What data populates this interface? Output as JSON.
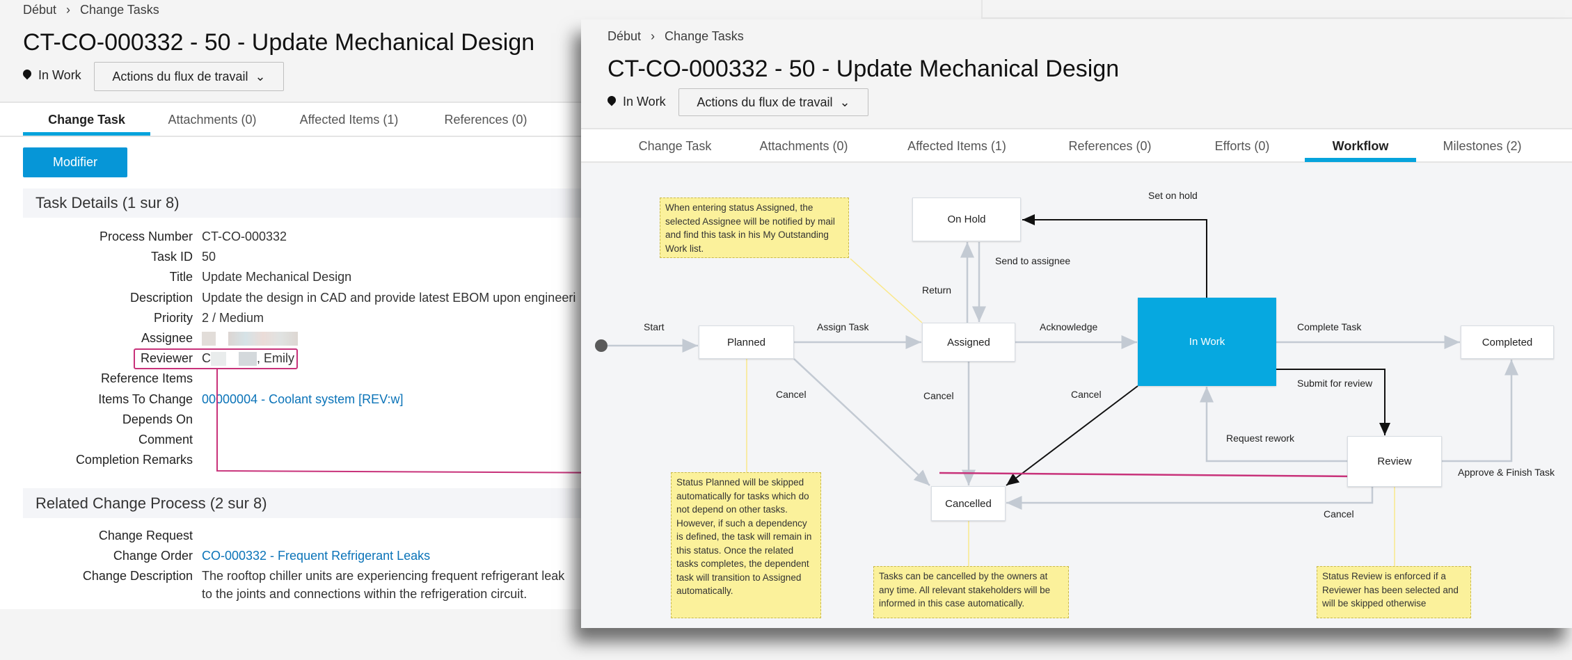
{
  "breadcrumb": {
    "home": "Début",
    "current": "Change Tasks"
  },
  "page_title": "CT-CO-000332 - 50 - Update Mechanical Design",
  "status": "In Work",
  "workflow_actions_label": "Actions du flux de travail",
  "tabs_left": [
    {
      "label": "Change Task",
      "active": true
    },
    {
      "label": "Attachments (0)"
    },
    {
      "label": "Affected Items (1)"
    },
    {
      "label": "References (0)"
    }
  ],
  "tabs_right": [
    {
      "label": "Change Task"
    },
    {
      "label": "Attachments (0)"
    },
    {
      "label": "Affected Items (1)"
    },
    {
      "label": "References (0)"
    },
    {
      "label": "Efforts (0)"
    },
    {
      "label": "Workflow",
      "active": true
    },
    {
      "label": "Milestones (2)"
    }
  ],
  "edit_button": "Modifier",
  "task_details": {
    "header": "Task Details (1 sur 8)",
    "fields": [
      {
        "label": "Process Number",
        "value": "CT-CO-000332"
      },
      {
        "label": "Task ID",
        "value": "50"
      },
      {
        "label": "Title",
        "value": "Update Mechanical Design"
      },
      {
        "label": "Description",
        "value": "Update the design in CAD and provide latest EBOM upon engineeri"
      },
      {
        "label": "Priority",
        "value": "2 / Medium"
      },
      {
        "label": "Assignee",
        "value": ""
      },
      {
        "label": "Reviewer",
        "value_prefix": "C",
        "value_suffix": ", Emily"
      },
      {
        "label": "Reference Items",
        "value": ""
      },
      {
        "label": "Items To Change",
        "value": "00000004 - Coolant system [REV:w]"
      },
      {
        "label": "Depends On",
        "value": ""
      },
      {
        "label": "Comment",
        "value": ""
      },
      {
        "label": "Completion Remarks",
        "value": ""
      }
    ]
  },
  "related": {
    "header": "Related Change Process (2 sur 8)",
    "fields": [
      {
        "label": "Change Request",
        "value": ""
      },
      {
        "label": "Change Order",
        "value": "CO-000332 - Frequent Refrigerant Leaks"
      },
      {
        "label": "Change Description",
        "value": "The rooftop chiller units are experiencing frequent refrigerant leak",
        "value2": "to the joints and connections within the refrigeration circuit."
      }
    ]
  },
  "workflow": {
    "states": {
      "planned": "Planned",
      "assigned": "Assigned",
      "on_hold": "On Hold",
      "in_work": "In Work",
      "completed": "Completed",
      "review": "Review",
      "cancelled": "Cancelled"
    },
    "transitions": {
      "start": "Start",
      "assign": "Assign Task",
      "acknowledge": "Acknowledge",
      "complete": "Complete Task",
      "set_on_hold": "Set on hold",
      "send_to_assignee": "Send to assignee",
      "return": "Return",
      "cancel1": "Cancel",
      "cancel2": "Cancel",
      "cancel3": "Cancel",
      "submit": "Submit for review",
      "rework": "Request rework",
      "approve": "Approve & Finish Task",
      "cancel4": "Cancel"
    },
    "notes": {
      "assigned": "When entering status Assigned, the selected Assignee will be notified by mail and find this task in his My Outstanding Work list.",
      "planned": "Status Planned will be skipped automatically for tasks which do not depend on other tasks. However, if such a dependency is defined, the task will remain in this status. Once the related tasks completes, the dependent task will transition to Assigned automatically.",
      "cancelled": "Tasks can be cancelled by the owners at any time. All relevant stakeholders will be informed in this case automatically.",
      "review": "Status Review is enforced if a Reviewer has been selected and will be skipped otherwise"
    }
  },
  "colors": {
    "accent": "#0696d7",
    "active_state": "#06a8e0",
    "note": "#fbf19b",
    "highlight": "#c8327a"
  }
}
